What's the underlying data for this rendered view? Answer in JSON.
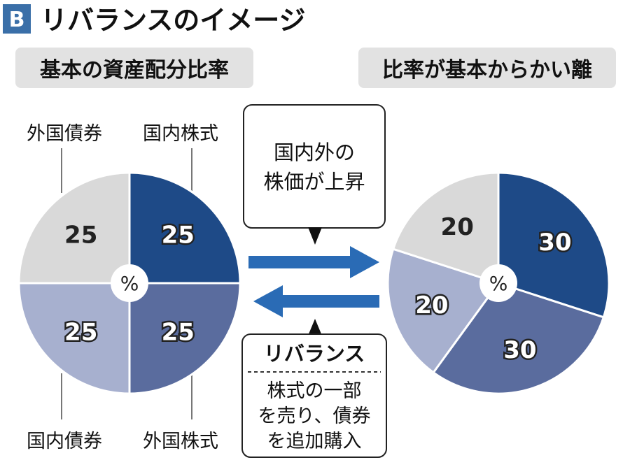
{
  "header": {
    "badge": "B",
    "title": "リバランスのイメージ"
  },
  "panels": {
    "left_title": "基本の資産配分比率",
    "right_title": "比率が基本からかい離"
  },
  "callouts": {
    "upper": [
      "国内外の",
      "株価が上昇"
    ],
    "lower_title": "リバランス",
    "lower_body": [
      "株式の一部",
      "を売り、債券",
      "を追加購入"
    ]
  },
  "center_label": "%",
  "colors": {
    "domestic_stock": "#1e4a87",
    "foreign_stock": "#5a6c9e",
    "domestic_bond": "#a7b0cf",
    "foreign_bond": "#d9d9d9",
    "arrow": "#2a6bb5",
    "badge": "#3a6fa8",
    "label_bar": "#e2e2e2"
  },
  "chart_data": [
    {
      "type": "pie",
      "title": "基本の資産配分比率",
      "unit": "%",
      "slices": [
        {
          "name": "国内株式",
          "value": 25,
          "color_key": "domestic_stock"
        },
        {
          "name": "外国株式",
          "value": 25,
          "color_key": "foreign_stock"
        },
        {
          "name": "国内債券",
          "value": 25,
          "color_key": "domestic_bond"
        },
        {
          "name": "外国債券",
          "value": 25,
          "color_key": "foreign_bond"
        }
      ]
    },
    {
      "type": "pie",
      "title": "比率が基本からかい離",
      "unit": "%",
      "slices": [
        {
          "name": "",
          "value": 30,
          "color_key": "domestic_stock"
        },
        {
          "name": "",
          "value": 30,
          "color_key": "foreign_stock"
        },
        {
          "name": "",
          "value": 20,
          "color_key": "domestic_bond"
        },
        {
          "name": "",
          "value": 20,
          "color_key": "foreign_bond"
        }
      ]
    }
  ]
}
